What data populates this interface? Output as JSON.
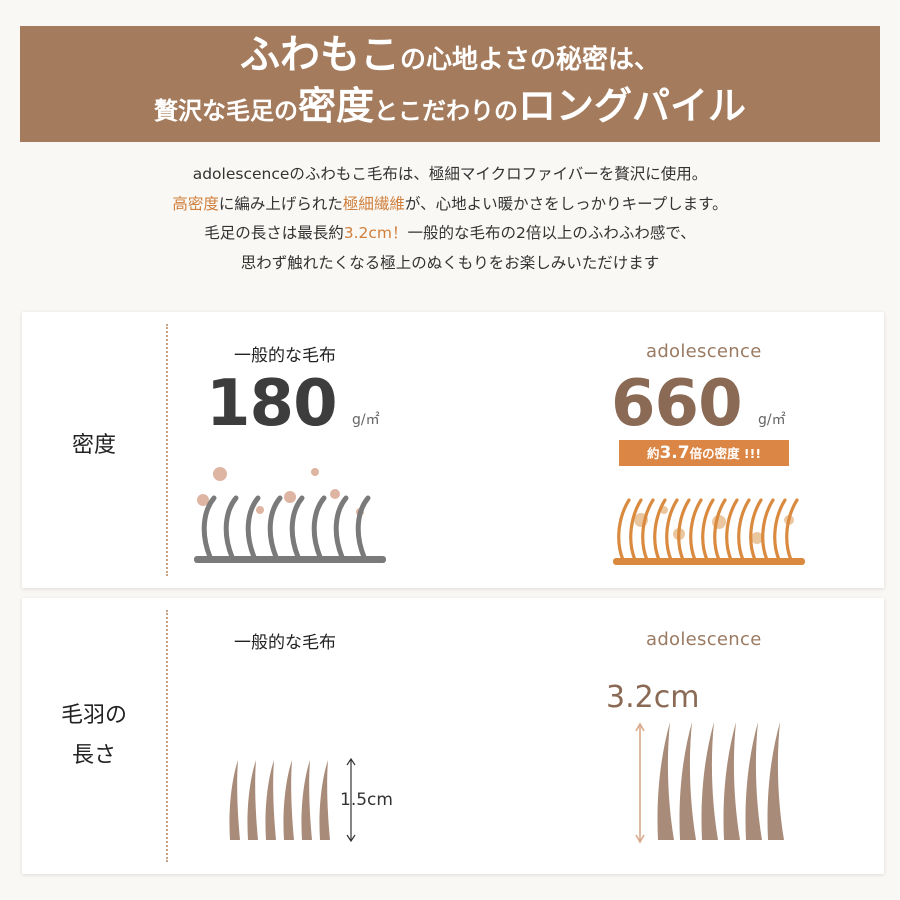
{
  "banner": {
    "line1_big": "ふわもこ",
    "line1_rest": "の心地よさの秘密は、",
    "line2_a": "贅沢な毛足の",
    "line2_big1": "密度",
    "line2_b": "とこだわりの",
    "line2_big2": "ロングパイル"
  },
  "intro": {
    "line1": "adolescenceのふわもこ毛布は、極細マイクロファイバーを贅沢に使用。",
    "line2_hl1": "高密度",
    "line2_a": "に編み上げられた",
    "line2_hl2": "極細繊維",
    "line2_b": "が、心地よい暖かさをしっかりキープします。",
    "line3_a": "毛足の長さは最長約",
    "line3_hl": "3.2cm！",
    "line3_b": "一般的な毛布の2倍以上のふわふわ感で、",
    "line4": "思わず触れたくなる極上のぬくもりをお楽しみいただけます"
  },
  "density": {
    "label": "密度",
    "general_title": "一般的な毛布",
    "general_value": "180",
    "unit": "g/㎡",
    "brand_title": "adolescence",
    "brand_value": "660",
    "badge_pre": "約",
    "badge_num": "3.7",
    "badge_post": "倍の密度 !!!"
  },
  "pile": {
    "label_line1": "毛羽の",
    "label_line2": "長さ",
    "general_title": "一般的な毛布",
    "general_length": "1.5cm",
    "brand_title": "adolescence",
    "brand_length": "3.2cm"
  },
  "colors": {
    "banner_bg": "#a47b5c",
    "accent_orange": "#dc8645",
    "gray_fiber": "#7a7a7a",
    "brown_fiber": "#a88b78"
  }
}
